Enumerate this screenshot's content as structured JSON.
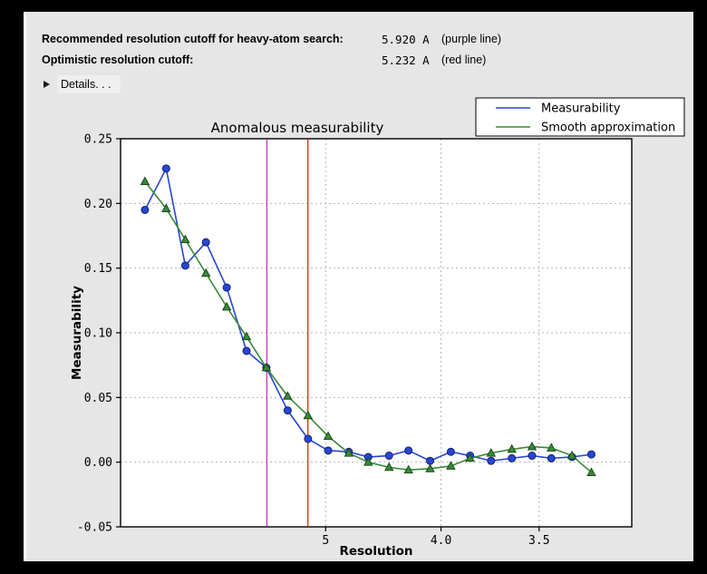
{
  "header": {
    "rows": [
      {
        "label": "Recommended resolution cutoff for heavy-atom search:",
        "value": "5.920 A",
        "note": "(purple line)"
      },
      {
        "label": "Optimistic resolution cutoff:",
        "value": "5.232 A",
        "note": "(red line)"
      }
    ],
    "details_label": "Details. . ."
  },
  "chart_data": {
    "type": "line",
    "title": "Anomalous measurability",
    "xlabel": "Resolution",
    "ylabel": "Measurability",
    "x_scale": "reciprocal-squared-resolution",
    "x_axis": {
      "s_range": [
        0,
        0.0997
      ],
      "ticks": [
        {
          "resolution": 5.0,
          "label": "5"
        },
        {
          "resolution": 4.0,
          "label": "4.0"
        },
        {
          "resolution": 3.5,
          "label": "3.5"
        }
      ]
    },
    "y_axis": {
      "range": [
        -0.05,
        0.25
      ],
      "ticks": [
        {
          "value": 0.25,
          "label": "0.25"
        },
        {
          "value": 0.2,
          "label": "0.20"
        },
        {
          "value": 0.15,
          "label": "0.15"
        },
        {
          "value": 0.1,
          "label": "0.10"
        },
        {
          "value": 0.05,
          "label": "0.05"
        },
        {
          "value": 0.0,
          "label": "0.00"
        },
        {
          "value": -0.05,
          "label": "-0.05"
        }
      ]
    },
    "grid": true,
    "legend_position": "top-right",
    "x_resolution": [
      14.5,
      10.6,
      8.9,
      7.75,
      6.95,
      6.38,
      5.93,
      5.54,
      5.23,
      4.97,
      4.74,
      4.55,
      4.37,
      4.22,
      4.07,
      3.94,
      3.83,
      3.72,
      3.62,
      3.53,
      3.45,
      3.37,
      3.3
    ],
    "series": [
      {
        "name": "Measurability",
        "color": "#2746d2",
        "marker_edge": "#141f70",
        "marker": "circle",
        "values": [
          0.195,
          0.227,
          0.152,
          0.17,
          0.135,
          0.086,
          0.073,
          0.04,
          0.018,
          0.009,
          0.008,
          0.004,
          0.005,
          0.009,
          0.001,
          0.008,
          0.005,
          0.001,
          0.003,
          0.005,
          0.003,
          0.004,
          0.006
        ]
      },
      {
        "name": "Smooth approximation",
        "color": "#388a38",
        "marker_edge": "#1b4a1b",
        "marker": "triangle",
        "values": [
          0.217,
          0.196,
          0.172,
          0.146,
          0.12,
          0.097,
          0.073,
          0.051,
          0.036,
          0.02,
          0.007,
          0.0,
          -0.004,
          -0.006,
          -0.005,
          -0.003,
          0.003,
          0.007,
          0.01,
          0.012,
          0.011,
          0.005,
          -0.008
        ]
      }
    ],
    "vlines": [
      {
        "name": "purple line",
        "resolution": 5.92,
        "color": "#c43fc4"
      },
      {
        "name": "red line",
        "resolution": 5.232,
        "color": "#cc3a12"
      }
    ],
    "colors": {
      "plot_background": "#ffffff",
      "grid": "#b5b5b5",
      "axis": "#000000"
    }
  }
}
